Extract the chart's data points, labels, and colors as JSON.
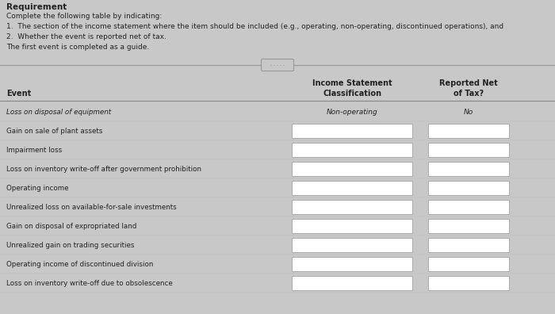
{
  "title": "Requirement",
  "instructions": [
    "Complete the following table by indicating:",
    "1.  The section of the income statement where the item should be included (e.g., operating, non-operating, discontinued operations), and",
    "2.  Whether the event is reported net of tax.",
    "The first event is completed as a guide."
  ],
  "rows": [
    {
      "event": "Loss on disposal of equipment",
      "classification": "Non-operating",
      "net_of_tax": "No",
      "italic": true,
      "has_box": false
    },
    {
      "event": "Gain on sale of plant assets",
      "classification": "",
      "net_of_tax": "",
      "italic": false,
      "has_box": true
    },
    {
      "event": "Impairment loss",
      "classification": "",
      "net_of_tax": "",
      "italic": false,
      "has_box": true
    },
    {
      "event": "Loss on inventory write-off after government prohibition",
      "classification": "",
      "net_of_tax": "",
      "italic": false,
      "has_box": true
    },
    {
      "event": "Operating income",
      "classification": "",
      "net_of_tax": "",
      "italic": false,
      "has_box": true
    },
    {
      "event": "Unrealized loss on available-for-sale investments",
      "classification": "",
      "net_of_tax": "",
      "italic": false,
      "has_box": true
    },
    {
      "event": "Gain on disposal of expropriated land",
      "classification": "",
      "net_of_tax": "",
      "italic": false,
      "has_box": true
    },
    {
      "event": "Unrealized gain on trading securities",
      "classification": "",
      "net_of_tax": "",
      "italic": false,
      "has_box": true
    },
    {
      "event": "Operating income of discontinued division",
      "classification": "",
      "net_of_tax": "",
      "italic": false,
      "has_box": true
    },
    {
      "event": "Loss on inventory write-off due to obsolescence",
      "classification": "",
      "net_of_tax": "",
      "italic": false,
      "has_box": true
    }
  ],
  "bg_color": "#c8c8c8",
  "box_fill": "#ffffff",
  "box_border": "#aaaaaa",
  "text_color": "#222222",
  "line_color": "#888888",
  "sep_line_color": "#999999",
  "figw": 7.0,
  "figh": 3.96,
  "dpi": 100
}
